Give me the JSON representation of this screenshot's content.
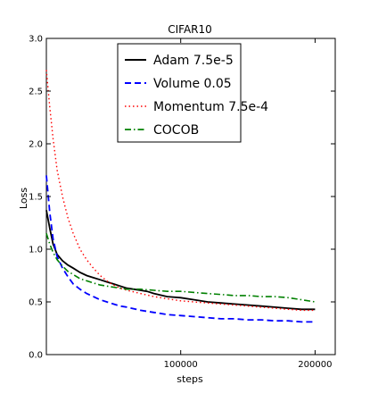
{
  "chart_data": {
    "type": "line",
    "title": "CIFAR10",
    "xlabel": "steps",
    "ylabel": "Loss",
    "xlim": [
      0,
      215000
    ],
    "ylim": [
      0.0,
      3.0
    ],
    "xticks": [
      100000,
      200000
    ],
    "xtick_labels": [
      "100000",
      "200000"
    ],
    "yticks": [
      0.0,
      0.5,
      1.0,
      1.5,
      2.0,
      2.5,
      3.0
    ],
    "ytick_labels": [
      "0.0",
      "0.5",
      "1.0",
      "1.5",
      "2.0",
      "2.5",
      "3.0"
    ],
    "grid": false,
    "legend_position": "top-right",
    "series": [
      {
        "name": "Adam 7.5e-5",
        "color": "#000000",
        "style": "solid",
        "x": [
          0,
          2500,
          5000,
          8000,
          12000,
          16000,
          20000,
          25000,
          30000,
          35000,
          40000,
          45000,
          50000,
          55000,
          60000,
          65000,
          70000,
          75000,
          80000,
          90000,
          100000,
          110000,
          120000,
          130000,
          140000,
          150000,
          160000,
          170000,
          180000,
          190000,
          200000
        ],
        "y": [
          1.37,
          1.2,
          1.05,
          0.95,
          0.89,
          0.85,
          0.82,
          0.78,
          0.75,
          0.73,
          0.71,
          0.69,
          0.67,
          0.65,
          0.63,
          0.62,
          0.61,
          0.6,
          0.58,
          0.55,
          0.54,
          0.52,
          0.5,
          0.49,
          0.48,
          0.47,
          0.46,
          0.45,
          0.44,
          0.43,
          0.43
        ]
      },
      {
        "name": "Volume 0.05",
        "color": "#0000ff",
        "style": "dashed",
        "x": [
          0,
          2500,
          5000,
          8000,
          12000,
          16000,
          20000,
          25000,
          30000,
          35000,
          40000,
          45000,
          50000,
          55000,
          60000,
          70000,
          80000,
          90000,
          100000,
          110000,
          120000,
          130000,
          140000,
          150000,
          160000,
          170000,
          180000,
          190000,
          200000
        ],
        "y": [
          1.7,
          1.35,
          1.1,
          0.93,
          0.82,
          0.74,
          0.67,
          0.62,
          0.58,
          0.55,
          0.52,
          0.5,
          0.48,
          0.46,
          0.45,
          0.42,
          0.4,
          0.38,
          0.37,
          0.36,
          0.35,
          0.34,
          0.34,
          0.33,
          0.33,
          0.32,
          0.32,
          0.31,
          0.31
        ]
      },
      {
        "name": "Momentum 7.5e-4",
        "color": "#ff0000",
        "style": "dotted",
        "x": [
          0,
          2500,
          5000,
          8000,
          12000,
          16000,
          20000,
          25000,
          30000,
          35000,
          40000,
          45000,
          50000,
          55000,
          60000,
          70000,
          80000,
          90000,
          100000,
          110000,
          120000,
          130000,
          140000,
          150000,
          160000,
          170000,
          180000,
          190000,
          200000
        ],
        "y": [
          2.7,
          2.35,
          2.05,
          1.75,
          1.5,
          1.3,
          1.15,
          1.0,
          0.9,
          0.82,
          0.75,
          0.7,
          0.66,
          0.63,
          0.61,
          0.58,
          0.55,
          0.53,
          0.51,
          0.5,
          0.49,
          0.48,
          0.47,
          0.46,
          0.45,
          0.44,
          0.43,
          0.42,
          0.42
        ]
      },
      {
        "name": "COCOB",
        "color": "#008000",
        "style": "dashdot",
        "x": [
          0,
          2500,
          5000,
          8000,
          12000,
          16000,
          20000,
          25000,
          30000,
          35000,
          40000,
          45000,
          50000,
          55000,
          60000,
          70000,
          80000,
          90000,
          100000,
          110000,
          120000,
          130000,
          140000,
          150000,
          160000,
          170000,
          180000,
          190000,
          200000
        ],
        "y": [
          1.15,
          1.05,
          0.97,
          0.9,
          0.84,
          0.79,
          0.76,
          0.72,
          0.7,
          0.68,
          0.66,
          0.65,
          0.64,
          0.63,
          0.62,
          0.62,
          0.61,
          0.6,
          0.6,
          0.59,
          0.58,
          0.57,
          0.56,
          0.56,
          0.55,
          0.55,
          0.54,
          0.52,
          0.5
        ]
      }
    ]
  }
}
